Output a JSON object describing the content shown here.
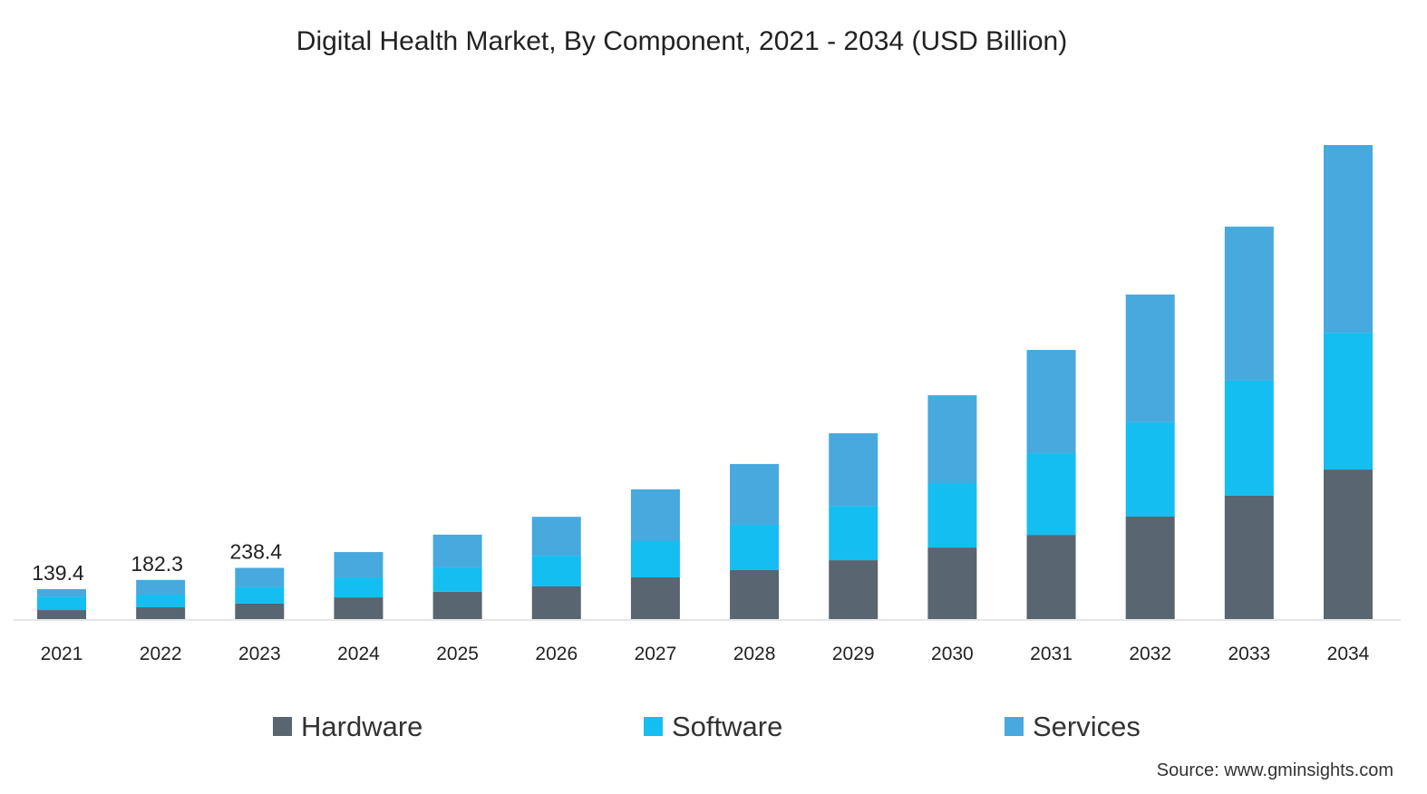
{
  "chart_data": {
    "type": "bar",
    "stacked": true,
    "title": "Digital Health Market, By Component, 2021 - 2034 (USD Billion)",
    "xlabel": "",
    "ylabel": "",
    "categories": [
      "2021",
      "2022",
      "2023",
      "2024",
      "2025",
      "2026",
      "2027",
      "2028",
      "2029",
      "2030",
      "2031",
      "2032",
      "2033",
      "2034"
    ],
    "series": [
      {
        "name": "Hardware",
        "color": "#596570",
        "values": [
          42,
          55,
          72,
          101,
          127,
          152,
          194,
          228,
          274,
          333,
          392,
          477,
          574,
          696
        ]
      },
      {
        "name": "Software",
        "color": "#14bef0",
        "values": [
          63,
          59,
          76,
          93,
          114,
          143,
          169,
          211,
          253,
          300,
          380,
          439,
          536,
          637
        ]
      },
      {
        "name": "Services",
        "color": "#47a9de",
        "values": [
          34.4,
          68.3,
          90.4,
          118,
          152,
          181,
          241,
          283,
          338,
          409,
          481,
          595,
          717,
          874
        ]
      }
    ],
    "data_labels": [
      {
        "category": "2021",
        "text": "139.4"
      },
      {
        "category": "2022",
        "text": "182.3"
      },
      {
        "category": "2023",
        "text": "238.4"
      }
    ],
    "ylim": [
      0,
      2300
    ],
    "y_axis_visible": false,
    "grid": false,
    "legend_placement": "bottom",
    "source": "Source: www.gminsights.com"
  }
}
